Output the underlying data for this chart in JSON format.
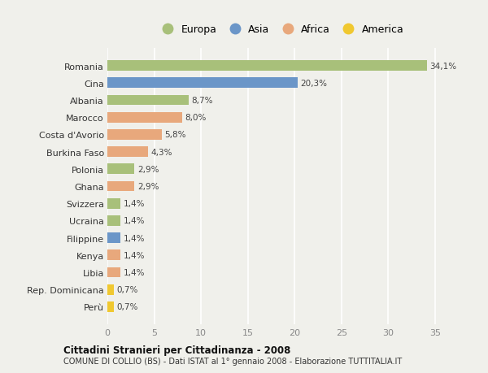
{
  "countries": [
    "Romania",
    "Cina",
    "Albania",
    "Marocco",
    "Costa d'Avorio",
    "Burkina Faso",
    "Polonia",
    "Ghana",
    "Svizzera",
    "Ucraina",
    "Filippine",
    "Kenya",
    "Libia",
    "Rep. Dominicana",
    "Perù"
  ],
  "values": [
    34.1,
    20.3,
    8.7,
    8.0,
    5.8,
    4.3,
    2.9,
    2.9,
    1.4,
    1.4,
    1.4,
    1.4,
    1.4,
    0.7,
    0.7
  ],
  "labels": [
    "34,1%",
    "20,3%",
    "8,7%",
    "8,0%",
    "5,8%",
    "4,3%",
    "2,9%",
    "2,9%",
    "1,4%",
    "1,4%",
    "1,4%",
    "1,4%",
    "1,4%",
    "0,7%",
    "0,7%"
  ],
  "continents": [
    "Europa",
    "Asia",
    "Europa",
    "Africa",
    "Africa",
    "Africa",
    "Europa",
    "Africa",
    "Europa",
    "Europa",
    "Asia",
    "Africa",
    "Africa",
    "America",
    "America"
  ],
  "continent_colors": {
    "Europa": "#a8c07a",
    "Asia": "#6b96c8",
    "Africa": "#e8a87c",
    "America": "#f0c830"
  },
  "legend_order": [
    "Europa",
    "Asia",
    "Africa",
    "America"
  ],
  "title": "Cittadini Stranieri per Cittadinanza - 2008",
  "subtitle": "COMUNE DI COLLIO (BS) - Dati ISTAT al 1° gennaio 2008 - Elaborazione TUTTITALIA.IT",
  "xlim": [
    0,
    37
  ],
  "xticks": [
    0,
    5,
    10,
    15,
    20,
    25,
    30,
    35
  ],
  "background_color": "#f0f0eb",
  "grid_color": "#ffffff",
  "bar_height": 0.6
}
